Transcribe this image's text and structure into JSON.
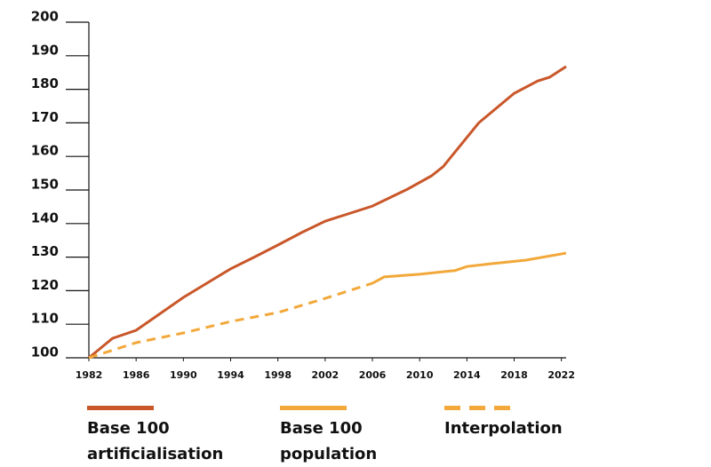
{
  "chart_data": {
    "type": "line",
    "xlim": [
      1982,
      2022.4
    ],
    "xticks": [
      1982,
      1986,
      1990,
      1994,
      1998,
      2002,
      2006,
      2010,
      2014,
      2018,
      2022
    ],
    "ylim": [
      100,
      200
    ],
    "yticks": [
      100,
      110,
      120,
      130,
      140,
      150,
      160,
      170,
      180,
      190,
      200
    ],
    "series": [
      {
        "name": "Base 100 artificialisation",
        "color": "#c9572a",
        "dashed": false,
        "x": [
          1982,
          1984,
          1986,
          1990,
          1994,
          1996,
          1998,
          2000,
          2002,
          2006,
          2009,
          2011,
          2012,
          2015,
          2018,
          2020,
          2021,
          2022.4
        ],
        "values": [
          100,
          105.8,
          108.2,
          118,
          126.5,
          130,
          133.6,
          137.3,
          140.7,
          145.2,
          150.3,
          154.2,
          157,
          170,
          178.8,
          182.5,
          183.6,
          186.8
        ]
      },
      {
        "name": "Base 100 population",
        "color": "#f2a83a",
        "dashed": false,
        "x": [
          2006,
          2007,
          2010,
          2013,
          2014,
          2016,
          2019,
          2022.4
        ],
        "values": [
          122.2,
          124.1,
          124.9,
          126,
          127.2,
          128,
          129.1,
          131.2
        ]
      },
      {
        "name": "Interpolation",
        "color": "#f2a83a",
        "dashed": true,
        "x": [
          1982,
          1986,
          1990,
          1994,
          1998,
          2002,
          2006
        ],
        "values": [
          100,
          104.5,
          107.4,
          110.8,
          113.5,
          117.7,
          122.2
        ]
      }
    ]
  }
}
